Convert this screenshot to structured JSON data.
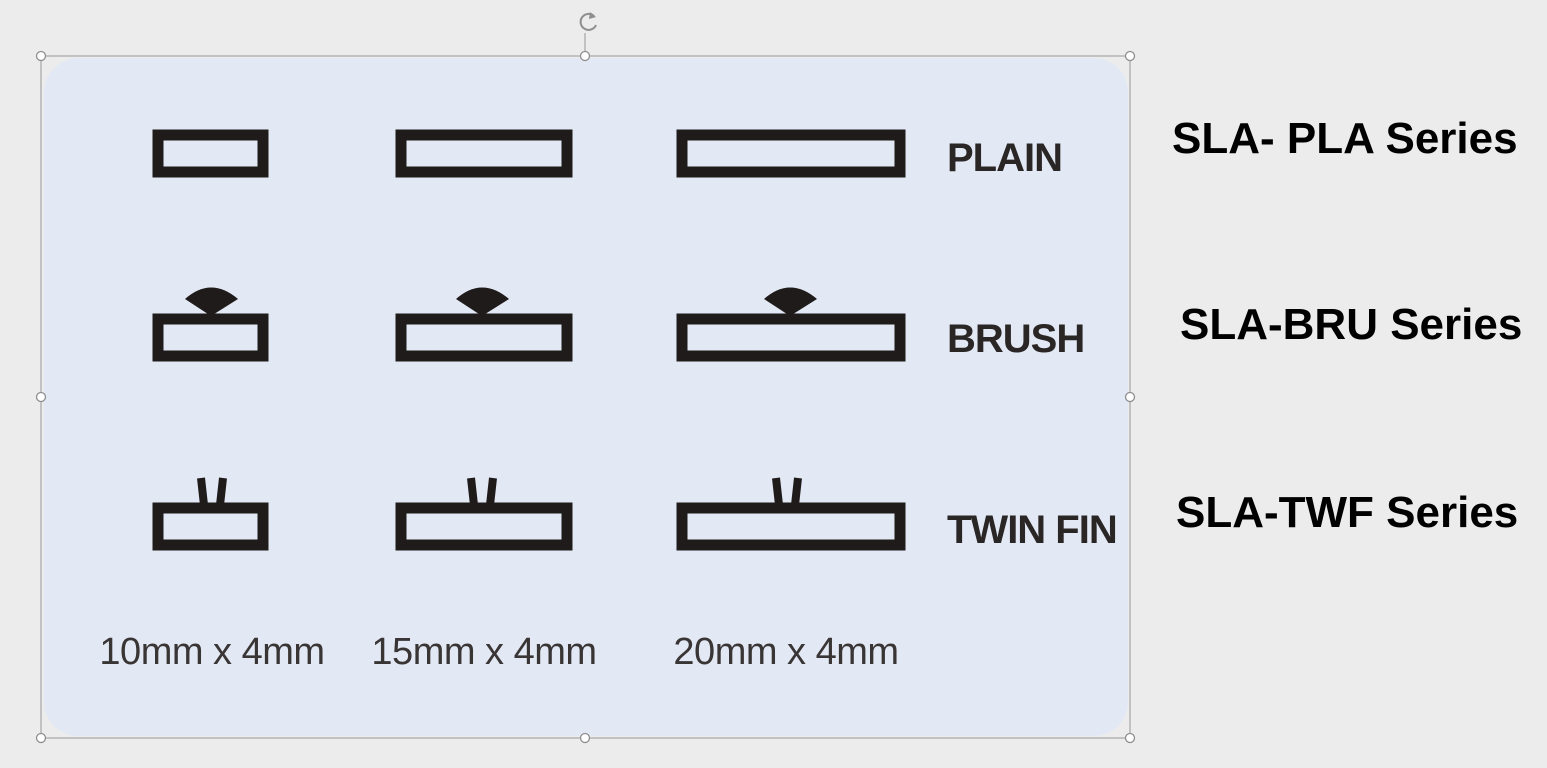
{
  "figure": {
    "rows": [
      {
        "label": "PLAIN",
        "type": "plain"
      },
      {
        "label": "BRUSH",
        "type": "brush"
      },
      {
        "label": "TWIN FIN",
        "type": "twinfin"
      }
    ],
    "sizes": [
      "10mm x 4mm",
      "15mm x 4mm",
      "20mm x 4mm"
    ]
  },
  "series_labels": [
    "SLA- PLA Series",
    "SLA-BRU Series",
    "SLA-TWF Series"
  ],
  "icons": {
    "rotate_handle": "rotate-handle-icon",
    "resize_handle": "resize-handle-icon"
  }
}
